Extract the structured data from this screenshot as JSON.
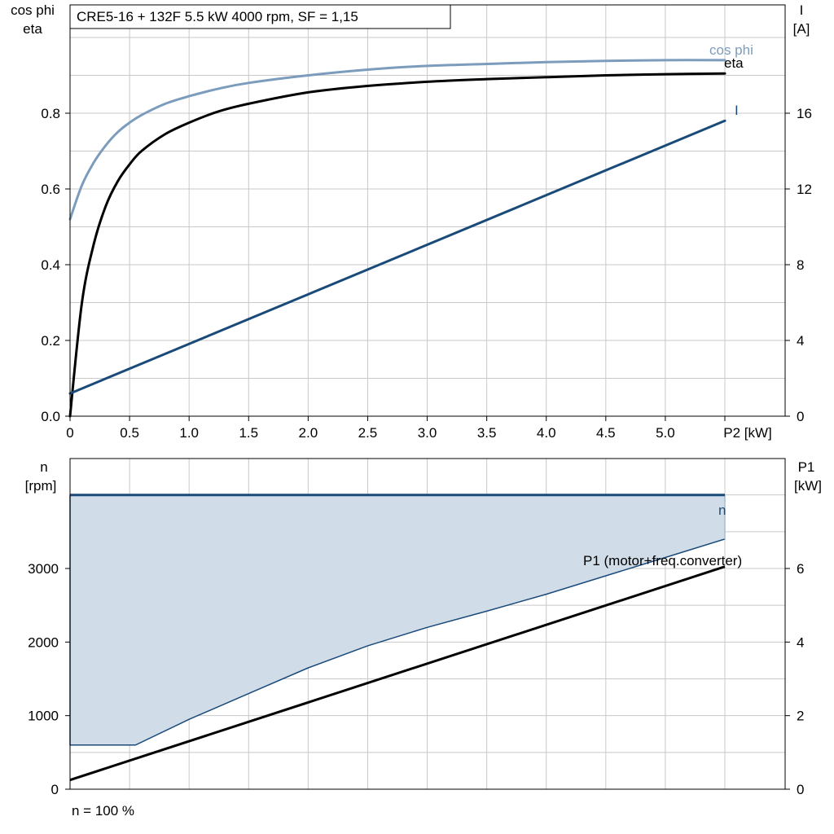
{
  "colors": {
    "cosphi": "#7b9cbd",
    "eta": "#000000",
    "current": "#1a4a7a",
    "speed": "#1a4a7a",
    "speed_fill": "#d0dce8",
    "p1": "#000000",
    "grid": "#c8c8c8"
  },
  "chart_data": [
    {
      "type": "line",
      "title": "CRE5-16 + 132F   5.5 kW   4000 rpm, SF = 1,15",
      "xlabel": "P2 [kW]",
      "ylabel_left": [
        "cos phi",
        "eta"
      ],
      "ylabel_right": [
        "I",
        "[A]"
      ],
      "xlim": [
        0,
        6
      ],
      "ylim_left": [
        0,
        1.0
      ],
      "ylim_right": [
        0,
        20
      ],
      "grid": true,
      "x_ticks": [
        "0",
        "0.5",
        "1.0",
        "1.5",
        "2.0",
        "2.5",
        "3.0",
        "3.5",
        "4.0",
        "4.5",
        "5.0"
      ],
      "y_ticks_left": [
        "0.0",
        "0.2",
        "0.4",
        "0.6",
        "0.8"
      ],
      "y_ticks_right": [
        "0",
        "4",
        "8",
        "12",
        "16"
      ],
      "series": [
        {
          "name": "cos phi",
          "axis": "left",
          "color_key": "cosphi",
          "x": [
            0,
            0.1,
            0.2,
            0.3,
            0.4,
            0.5,
            0.6,
            0.8,
            1.0,
            1.25,
            1.5,
            2.0,
            2.5,
            3.0,
            3.5,
            4.0,
            4.5,
            5.0,
            5.5
          ],
          "y": [
            0.52,
            0.61,
            0.67,
            0.715,
            0.75,
            0.775,
            0.795,
            0.825,
            0.845,
            0.865,
            0.88,
            0.9,
            0.915,
            0.925,
            0.93,
            0.935,
            0.938,
            0.94,
            0.94
          ]
        },
        {
          "name": "eta",
          "axis": "left",
          "color_key": "eta",
          "x": [
            0,
            0.1,
            0.2,
            0.3,
            0.4,
            0.5,
            0.6,
            0.8,
            1.0,
            1.25,
            1.5,
            2.0,
            2.5,
            3.0,
            3.5,
            4.0,
            4.5,
            5.0,
            5.5
          ],
          "y": [
            0.0,
            0.3,
            0.455,
            0.555,
            0.62,
            0.665,
            0.7,
            0.745,
            0.775,
            0.805,
            0.825,
            0.855,
            0.872,
            0.883,
            0.89,
            0.895,
            0.9,
            0.903,
            0.905
          ]
        },
        {
          "name": "I",
          "axis": "right",
          "color_key": "current",
          "x": [
            0,
            5.5
          ],
          "y": [
            1.2,
            15.6
          ]
        }
      ]
    },
    {
      "type": "area",
      "xlim": [
        0,
        6
      ],
      "ylim_left": [
        0,
        5000
      ],
      "ylim_right": [
        0,
        10
      ],
      "ylabel_left": [
        "n",
        "[rpm]"
      ],
      "ylabel_right": [
        "P1",
        "[kW]"
      ],
      "grid": true,
      "y_ticks_left": [
        "0",
        "1000",
        "2000",
        "3000"
      ],
      "y_ticks_right": [
        "0",
        "2",
        "4",
        "6"
      ],
      "footnote": "n = 100 %",
      "series": [
        {
          "name": "n",
          "axis": "left",
          "color_key": "speed",
          "x": [
            0,
            5.5
          ],
          "y": [
            4000,
            4000
          ]
        },
        {
          "axis": "left",
          "role": "lower-bound",
          "color_key": "speed",
          "x": [
            0,
            0.55,
            1.0,
            1.5,
            2.0,
            2.5,
            3.0,
            3.5,
            4.0,
            4.5,
            5.0,
            5.5
          ],
          "y": [
            600,
            600,
            950,
            1300,
            1650,
            1950,
            2200,
            2420,
            2650,
            2900,
            3150,
            3400
          ]
        },
        {
          "name": "P1 (motor+freq.converter)",
          "axis": "right",
          "color_key": "p1",
          "x": [
            0,
            5.5
          ],
          "y": [
            0.25,
            6.05
          ]
        }
      ]
    }
  ]
}
